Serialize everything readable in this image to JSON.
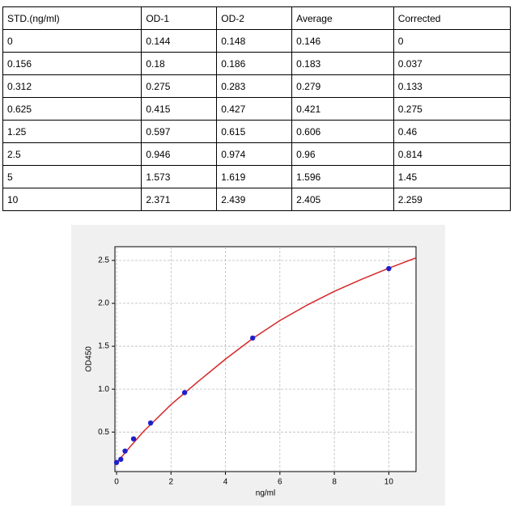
{
  "table": {
    "header": [
      "STD.(ng/ml)",
      "OD-1",
      "OD-2",
      "Average",
      "Corrected"
    ],
    "rows": [
      [
        "0",
        "0.144",
        "0.148",
        "0.146",
        "0"
      ],
      [
        "0.156",
        "0.18",
        "0.186",
        "0.183",
        "0.037"
      ],
      [
        "0.312",
        "0.275",
        "0.283",
        "0.279",
        "0.133"
      ],
      [
        "0.625",
        "0.415",
        "0.427",
        "0.421",
        "0.275"
      ],
      [
        "1.25",
        "0.597",
        "0.615",
        "0.606",
        "0.46"
      ],
      [
        "2.5",
        "0.946",
        "0.974",
        "0.96",
        "0.814"
      ],
      [
        "5",
        "1.573",
        "1.619",
        "1.596",
        "1.45"
      ],
      [
        "10",
        "2.371",
        "2.439",
        "2.405",
        "2.259"
      ]
    ]
  },
  "chart_data": {
    "type": "scatter",
    "x_label": "ng/ml",
    "y_label": "OD450",
    "xlim": [
      -0.06,
      11
    ],
    "ylim": [
      0.04,
      2.66
    ],
    "xticks": [
      0,
      2,
      4,
      6,
      8,
      10
    ],
    "yticks": [
      0.5,
      {
        "value": 1,
        "label": "1.0"
      },
      1.5,
      {
        "value": 2,
        "label": "2.0"
      },
      2.5
    ],
    "grid": true,
    "series": [
      {
        "type": "scatter",
        "color": "#1f1fcc",
        "x": [
          0,
          0.156,
          0.312,
          0.625,
          1.25,
          2.5,
          5,
          10
        ],
        "values": [
          0.146,
          0.183,
          0.279,
          0.421,
          0.606,
          0.96,
          1.596,
          2.405
        ]
      },
      {
        "type": "line",
        "color": "#d62728",
        "x": [
          0,
          0.5,
          1,
          2,
          3,
          4,
          5,
          6,
          7,
          8,
          9,
          10,
          11
        ],
        "values": [
          0.14,
          0.33,
          0.51,
          0.82,
          1.09,
          1.35,
          1.59,
          1.8,
          1.98,
          2.14,
          2.28,
          2.41,
          2.53
        ]
      }
    ]
  }
}
